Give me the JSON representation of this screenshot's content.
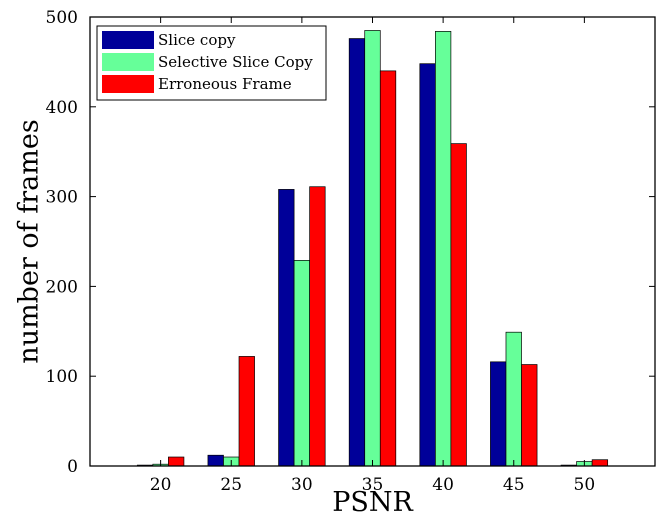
{
  "chart_data": {
    "type": "bar",
    "title": "",
    "xlabel": "PSNR",
    "ylabel": "number of frames",
    "categories": [
      "20",
      "25",
      "30",
      "35",
      "40",
      "45",
      "50"
    ],
    "series": [
      {
        "name": "Slice copy",
        "color": "#000099",
        "values": [
          1,
          12,
          308,
          476,
          448,
          116,
          1
        ]
      },
      {
        "name": "Selective Slice Copy",
        "color": "#66ff99",
        "values": [
          2,
          10,
          229,
          485,
          484,
          149,
          5
        ]
      },
      {
        "name": "Erroneous Frame",
        "color": "#ff0000",
        "values": [
          10,
          122,
          311,
          440,
          359,
          113,
          7
        ]
      }
    ],
    "xlim": [
      15,
      55
    ],
    "ylim": [
      0,
      500
    ],
    "yticks": [
      0,
      100,
      200,
      300,
      400,
      500
    ],
    "grid": false,
    "legend_position": "top-left"
  }
}
